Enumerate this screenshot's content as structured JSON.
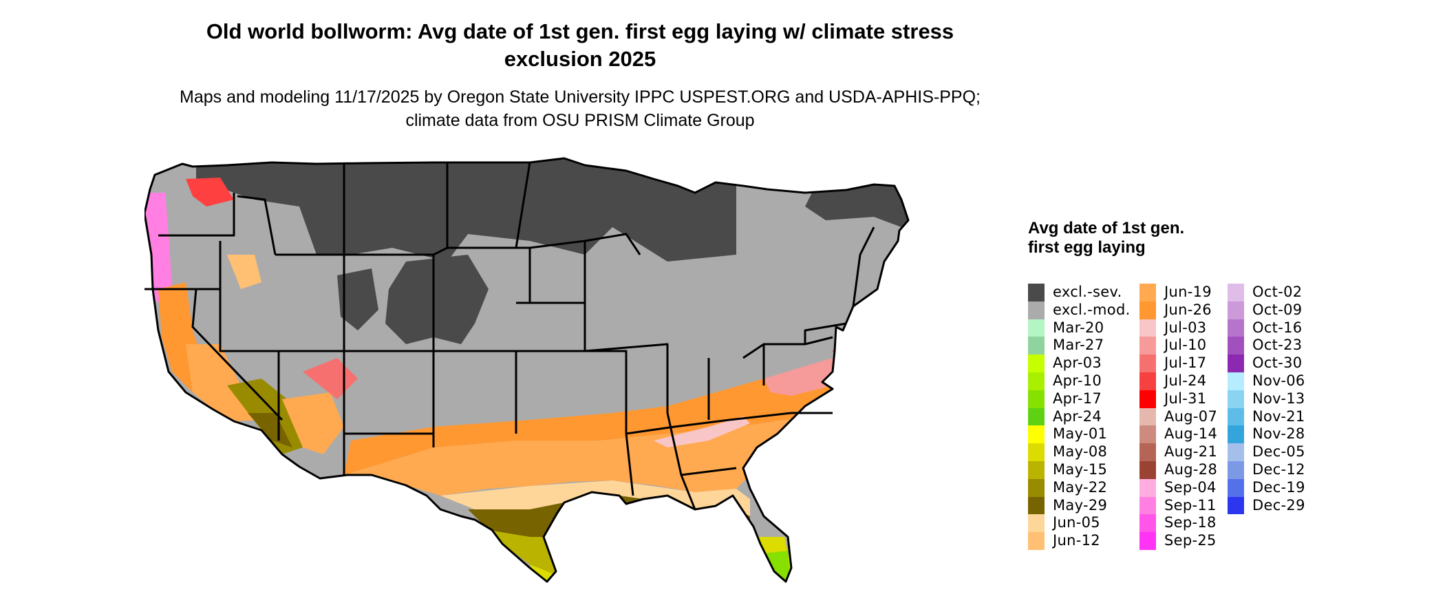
{
  "title": "Old world bollworm: Avg date of 1st gen. first egg laying w/ climate stress exclusion 2025",
  "subtitle": "Maps and modeling 11/17/2025 by Oregon State University IPPC USPEST.ORG and USDA-APHIS-PPQ; climate data from OSU PRISM Climate Group",
  "legend": {
    "title": "Avg date of 1st gen. first egg laying",
    "columns": [
      [
        {
          "label": "excl.-sev.",
          "color": "#4a4a4a"
        },
        {
          "label": "excl.-mod.",
          "color": "#ababab"
        },
        {
          "label": "Mar-20",
          "color": "#b3f5c3"
        },
        {
          "label": "Mar-27",
          "color": "#8fd39f"
        },
        {
          "label": "Apr-03",
          "color": "#c6ff00"
        },
        {
          "label": "Apr-10",
          "color": "#a8ef00"
        },
        {
          "label": "Apr-17",
          "color": "#86e000"
        },
        {
          "label": "Apr-24",
          "color": "#5ed212"
        },
        {
          "label": "May-01",
          "color": "#ffff00"
        },
        {
          "label": "May-08",
          "color": "#dcdc00"
        },
        {
          "label": "May-15",
          "color": "#bab300"
        },
        {
          "label": "May-22",
          "color": "#998b00"
        },
        {
          "label": "May-29",
          "color": "#776300"
        },
        {
          "label": "Jun-05",
          "color": "#ffd699"
        },
        {
          "label": "Jun-12",
          "color": "#ffc073"
        }
      ],
      [
        {
          "label": "Jun-19",
          "color": "#ffaa50"
        },
        {
          "label": "Jun-26",
          "color": "#ff9830"
        },
        {
          "label": "Jul-03",
          "color": "#f9c6c8"
        },
        {
          "label": "Jul-10",
          "color": "#f79a9a"
        },
        {
          "label": "Jul-17",
          "color": "#f77070"
        },
        {
          "label": "Jul-24",
          "color": "#f74040"
        },
        {
          "label": "Jul-31",
          "color": "#ff0000"
        },
        {
          "label": "Aug-07",
          "color": "#e6b8ad"
        },
        {
          "label": "Aug-14",
          "color": "#cd8b7f"
        },
        {
          "label": "Aug-21",
          "color": "#b46555"
        },
        {
          "label": "Aug-28",
          "color": "#9b4333"
        },
        {
          "label": "Sep-04",
          "color": "#ffade0"
        },
        {
          "label": "Sep-11",
          "color": "#ff80e2"
        },
        {
          "label": "Sep-18",
          "color": "#ff55e8"
        },
        {
          "label": "Sep-25",
          "color": "#ff33f5"
        }
      ],
      [
        {
          "label": "Oct-02",
          "color": "#e0bde9"
        },
        {
          "label": "Oct-09",
          "color": "#cc99d9"
        },
        {
          "label": "Oct-16",
          "color": "#b774cc"
        },
        {
          "label": "Oct-23",
          "color": "#a350bf"
        },
        {
          "label": "Oct-30",
          "color": "#8c29b0"
        },
        {
          "label": "Nov-06",
          "color": "#b5ecff"
        },
        {
          "label": "Nov-13",
          "color": "#8ad4f2"
        },
        {
          "label": "Nov-21",
          "color": "#5ebde8"
        },
        {
          "label": "Nov-28",
          "color": "#33a5dc"
        },
        {
          "label": "Dec-05",
          "color": "#a4c0ea"
        },
        {
          "label": "Dec-12",
          "color": "#7c99e6"
        },
        {
          "label": "Dec-19",
          "color": "#5571ea"
        },
        {
          "label": "Dec-29",
          "color": "#2c36ef"
        }
      ]
    ]
  }
}
